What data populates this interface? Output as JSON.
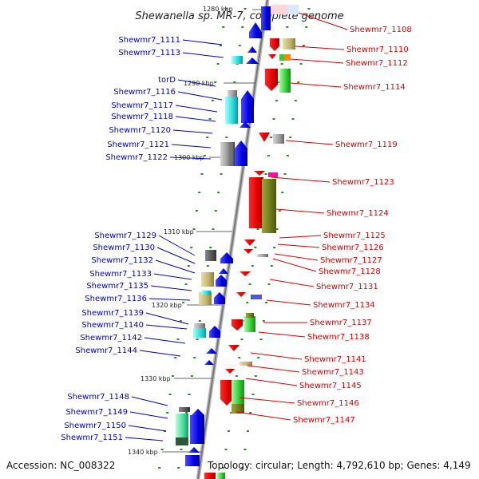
{
  "title": "Shewanella sp. MR-7, complete genome",
  "accession_text": "Accession: NC_008322",
  "topology_text": "Topology: circular; Length: 4,792,610 bp; Genes: 4,149",
  "colors": {
    "left_label": "#0000cc",
    "right_label": "#dd0000",
    "backbone": "#999999"
  },
  "kbp_marks": [
    "1280 kbp",
    "1290 kbp",
    "1300 kbp",
    "1310 kbp",
    "1320 kbp",
    "1330 kbp",
    "1340 kbp"
  ],
  "left_genes": [
    "Shewmr7_1111",
    "Shewmr7_1113",
    "torD",
    "Shewmr7_1116",
    "Shewmr7_1117",
    "Shewmr7_1118",
    "Shewmr7_1120",
    "Shewmr7_1121",
    "Shewmr7_1122",
    "Shewmr7_1129",
    "Shewmr7_1130",
    "Shewmr7_1132",
    "Shewmr7_1133",
    "Shewmr7_1135",
    "Shewmr7_1136",
    "Shewmr7_1139",
    "Shewmr7_1140",
    "Shewmr7_1142",
    "Shewmr7_1144",
    "Shewmr7_1148",
    "Shewmr7_1149",
    "Shewmr7_1150",
    "Shewmr7_1151"
  ],
  "right_genes": [
    "Shewmr7_1108",
    "Shewmr7_1110",
    "Shewmr7_1112",
    "Shewmr7_1114",
    "Shewmr7_1119",
    "Shewmr7_1123",
    "Shewmr7_1124",
    "Shewmr7_1125",
    "Shewmr7_1126",
    "Shewmr7_1127",
    "Shewmr7_1128",
    "Shewmr7_1131",
    "Shewmr7_1134",
    "Shewmr7_1137",
    "Shewmr7_1138",
    "Shewmr7_1141",
    "Shewmr7_1143",
    "Shewmr7_1145",
    "Shewmr7_1146",
    "Shewmr7_1147"
  ]
}
